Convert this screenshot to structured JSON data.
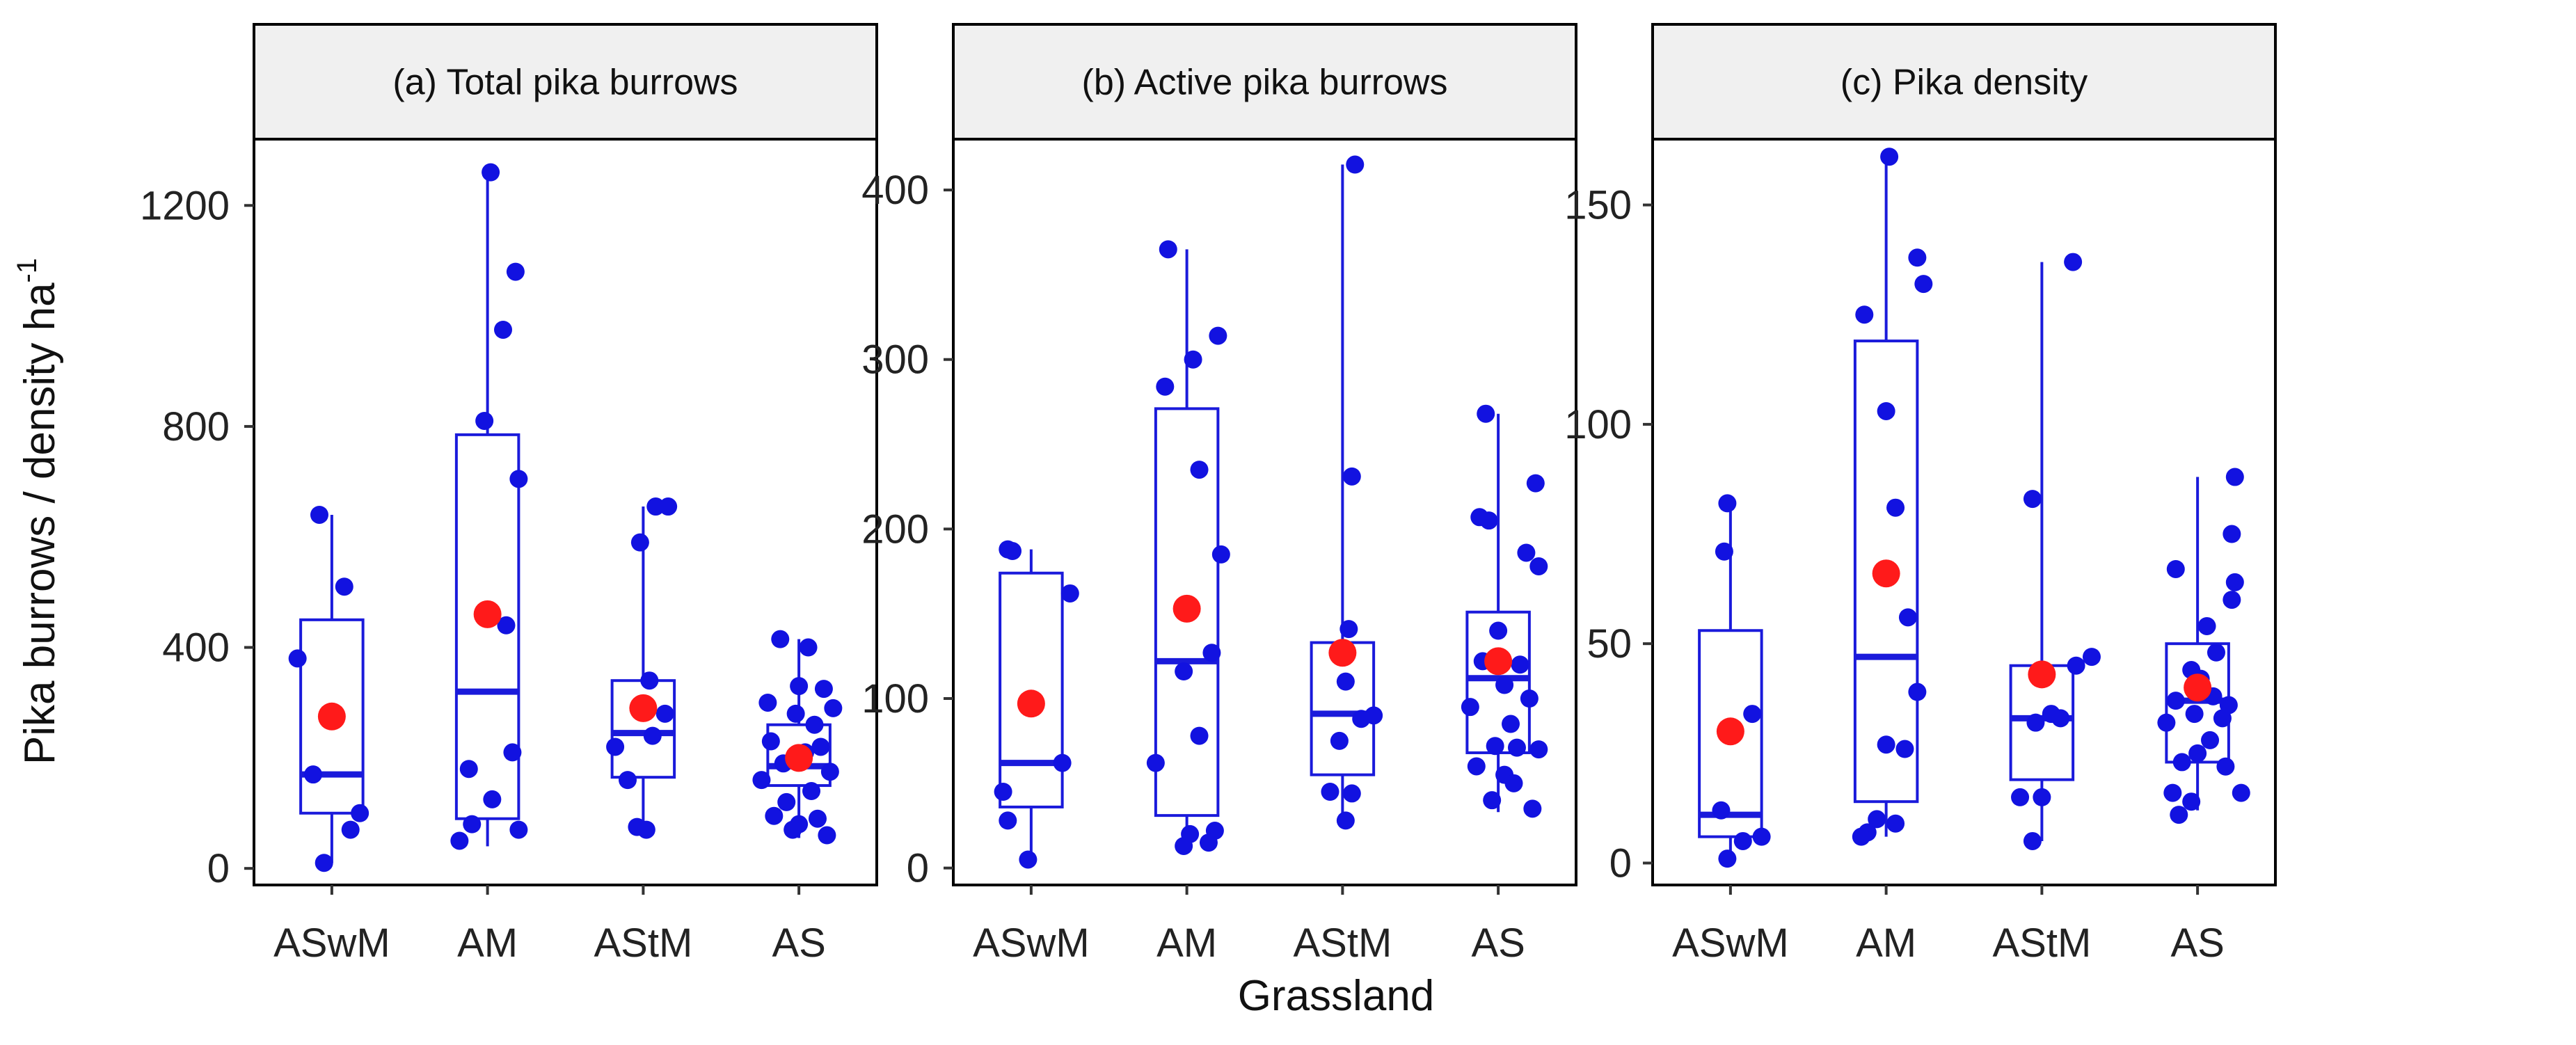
{
  "chart_data": {
    "type": "box",
    "ylabel": "Pika burrows / density ha",
    "ylabel_superscript": "-1",
    "xlabel": "Grassland",
    "categories": [
      "ASwM",
      "AM",
      "AStM",
      "AS"
    ],
    "colors": {
      "box": "#1a1adb",
      "points": "#1212e0",
      "mean": "#ff1a1a",
      "strip_bg": "#f0f0f0",
      "frame": "#000000"
    },
    "panels": [
      {
        "title": "(a) Total pika burrows",
        "ylim": [
          -30,
          1320
        ],
        "yticks": [
          0,
          400,
          800,
          1200
        ],
        "groups": [
          {
            "category": "ASwM",
            "whisker_low": 10,
            "q1": 100,
            "median": 170,
            "q3": 450,
            "whisker_high": 640,
            "mean": 275,
            "points": [
              [
                -0.08,
                640
              ],
              [
                0.08,
                510
              ],
              [
                -0.22,
                380
              ],
              [
                -0.12,
                170
              ],
              [
                0.18,
                100
              ],
              [
                0.12,
                70
              ],
              [
                -0.05,
                10
              ]
            ]
          },
          {
            "category": "AM",
            "whisker_low": 40,
            "q1": 90,
            "median": 320,
            "q3": 785,
            "whisker_high": 1260,
            "mean": 460,
            "points": [
              [
                0.02,
                1260
              ],
              [
                0.18,
                1080
              ],
              [
                0.1,
                975
              ],
              [
                -0.02,
                810
              ],
              [
                0.2,
                705
              ],
              [
                0.12,
                440
              ],
              [
                0.16,
                210
              ],
              [
                -0.12,
                180
              ],
              [
                0.03,
                125
              ],
              [
                -0.1,
                80
              ],
              [
                0.2,
                70
              ],
              [
                -0.18,
                50
              ]
            ]
          },
          {
            "category": "AStM",
            "whisker_low": 70,
            "q1": 165,
            "median": 245,
            "q3": 340,
            "whisker_high": 655,
            "mean": 290,
            "points": [
              [
                0.08,
                655
              ],
              [
                0.16,
                655
              ],
              [
                -0.02,
                590
              ],
              [
                0.04,
                340
              ],
              [
                0.14,
                280
              ],
              [
                0.06,
                240
              ],
              [
                -0.18,
                220
              ],
              [
                -0.1,
                160
              ],
              [
                -0.04,
                75
              ],
              [
                0.02,
                70
              ]
            ]
          },
          {
            "category": "AS",
            "whisker_low": 55,
            "q1": 150,
            "median": 185,
            "q3": 260,
            "whisker_high": 415,
            "mean": 200,
            "points": [
              [
                -0.12,
                415
              ],
              [
                0.06,
                400
              ],
              [
                0.0,
                330
              ],
              [
                0.16,
                325
              ],
              [
                -0.2,
                300
              ],
              [
                0.22,
                290
              ],
              [
                -0.02,
                280
              ],
              [
                0.1,
                260
              ],
              [
                -0.18,
                230
              ],
              [
                0.14,
                220
              ],
              [
                0.04,
                210
              ],
              [
                -0.1,
                190
              ],
              [
                0.2,
                175
              ],
              [
                -0.24,
                160
              ],
              [
                0.08,
                140
              ],
              [
                -0.08,
                120
              ],
              [
                -0.16,
                95
              ],
              [
                0.12,
                90
              ],
              [
                0.0,
                80
              ],
              [
                -0.04,
                70
              ],
              [
                0.18,
                60
              ]
            ]
          }
        ]
      },
      {
        "title": "(b) Active pika burrows",
        "ylim": [
          -10,
          430
        ],
        "yticks": [
          0,
          100,
          200,
          300,
          400
        ],
        "groups": [
          {
            "category": "ASwM",
            "whisker_low": 5,
            "q1": 36,
            "median": 62,
            "q3": 174,
            "whisker_high": 188,
            "mean": 97,
            "points": [
              [
                -0.15,
                188
              ],
              [
                -0.12,
                187
              ],
              [
                0.25,
                162
              ],
              [
                0.2,
                62
              ],
              [
                -0.18,
                45
              ],
              [
                -0.15,
                28
              ],
              [
                -0.02,
                5
              ]
            ]
          },
          {
            "category": "AM",
            "whisker_low": 12,
            "q1": 31,
            "median": 122,
            "q3": 271,
            "whisker_high": 365,
            "mean": 153,
            "points": [
              [
                -0.12,
                365
              ],
              [
                0.2,
                314
              ],
              [
                0.04,
                300
              ],
              [
                -0.14,
                284
              ],
              [
                0.08,
                235
              ],
              [
                0.22,
                185
              ],
              [
                0.16,
                127
              ],
              [
                -0.02,
                116
              ],
              [
                0.08,
                78
              ],
              [
                -0.2,
                62
              ],
              [
                0.02,
                20
              ],
              [
                0.18,
                22
              ],
              [
                0.14,
                15
              ],
              [
                -0.02,
                13
              ]
            ]
          },
          {
            "category": "AStM",
            "whisker_low": 27,
            "q1": 55,
            "median": 91,
            "q3": 133,
            "whisker_high": 415,
            "mean": 127,
            "points": [
              [
                0.08,
                415
              ],
              [
                0.06,
                231
              ],
              [
                0.04,
                141
              ],
              [
                0.02,
                110
              ],
              [
                0.2,
                90
              ],
              [
                0.12,
                88
              ],
              [
                -0.02,
                75
              ],
              [
                -0.08,
                45
              ],
              [
                0.06,
                44
              ],
              [
                0.02,
                28
              ]
            ]
          },
          {
            "category": "AS",
            "whisker_low": 33,
            "q1": 68,
            "median": 112,
            "q3": 151,
            "whisker_high": 268,
            "mean": 122,
            "points": [
              [
                -0.08,
                268
              ],
              [
                0.24,
                227
              ],
              [
                -0.12,
                207
              ],
              [
                -0.06,
                205
              ],
              [
                0.18,
                186
              ],
              [
                0.26,
                178
              ],
              [
                0.0,
                140
              ],
              [
                -0.1,
                122
              ],
              [
                0.14,
                120
              ],
              [
                0.04,
                108
              ],
              [
                0.2,
                100
              ],
              [
                -0.18,
                95
              ],
              [
                0.08,
                85
              ],
              [
                -0.02,
                72
              ],
              [
                0.12,
                71
              ],
              [
                0.26,
                70
              ],
              [
                -0.14,
                60
              ],
              [
                0.04,
                55
              ],
              [
                0.1,
                50
              ],
              [
                -0.04,
                40
              ],
              [
                0.22,
                35
              ]
            ]
          }
        ]
      },
      {
        "title": "(c) Pika density",
        "ylim": [
          -5,
          165
        ],
        "yticks": [
          0,
          50,
          100,
          150
        ],
        "groups": [
          {
            "category": "ASwM",
            "whisker_low": 1,
            "q1": 6,
            "median": 11,
            "q3": 53,
            "whisker_high": 82,
            "mean": 30,
            "points": [
              [
                -0.02,
                82
              ],
              [
                -0.04,
                71
              ],
              [
                0.14,
                34
              ],
              [
                -0.06,
                12
              ],
              [
                0.2,
                6
              ],
              [
                0.08,
                5
              ],
              [
                -0.02,
                1
              ]
            ]
          },
          {
            "category": "AM",
            "whisker_low": 6,
            "q1": 14,
            "median": 47,
            "q3": 119,
            "whisker_high": 161,
            "mean": 66,
            "points": [
              [
                0.02,
                161
              ],
              [
                0.2,
                138
              ],
              [
                0.24,
                132
              ],
              [
                -0.14,
                125
              ],
              [
                0.0,
                103
              ],
              [
                0.06,
                81
              ],
              [
                0.14,
                56
              ],
              [
                0.2,
                39
              ],
              [
                0.0,
                27
              ],
              [
                0.12,
                26
              ],
              [
                -0.06,
                10
              ],
              [
                0.06,
                9
              ],
              [
                -0.12,
                7
              ],
              [
                -0.16,
                6
              ]
            ]
          },
          {
            "category": "AStM",
            "whisker_low": 5,
            "q1": 19,
            "median": 33,
            "q3": 45,
            "whisker_high": 137,
            "mean": 43,
            "points": [
              [
                0.2,
                137
              ],
              [
                -0.06,
                83
              ],
              [
                0.32,
                47
              ],
              [
                0.22,
                45
              ],
              [
                0.06,
                34
              ],
              [
                0.12,
                33
              ],
              [
                -0.04,
                32
              ],
              [
                -0.14,
                15
              ],
              [
                0.0,
                15
              ],
              [
                -0.06,
                5
              ]
            ]
          },
          {
            "category": "AS",
            "whisker_low": 12,
            "q1": 23,
            "median": 37,
            "q3": 50,
            "whisker_high": 88,
            "mean": 40,
            "points": [
              [
                0.24,
                88
              ],
              [
                0.22,
                75
              ],
              [
                -0.14,
                67
              ],
              [
                0.24,
                64
              ],
              [
                0.22,
                60
              ],
              [
                0.06,
                54
              ],
              [
                0.12,
                48
              ],
              [
                -0.04,
                44
              ],
              [
                0.02,
                42
              ],
              [
                0.1,
                38
              ],
              [
                -0.14,
                37
              ],
              [
                0.2,
                36
              ],
              [
                -0.02,
                34
              ],
              [
                0.16,
                33
              ],
              [
                -0.2,
                32
              ],
              [
                0.08,
                28
              ],
              [
                0.0,
                25
              ],
              [
                -0.1,
                23
              ],
              [
                0.18,
                22
              ],
              [
                -0.16,
                16
              ],
              [
                0.28,
                16
              ],
              [
                -0.04,
                14
              ],
              [
                -0.12,
                11
              ]
            ]
          }
        ]
      }
    ]
  }
}
